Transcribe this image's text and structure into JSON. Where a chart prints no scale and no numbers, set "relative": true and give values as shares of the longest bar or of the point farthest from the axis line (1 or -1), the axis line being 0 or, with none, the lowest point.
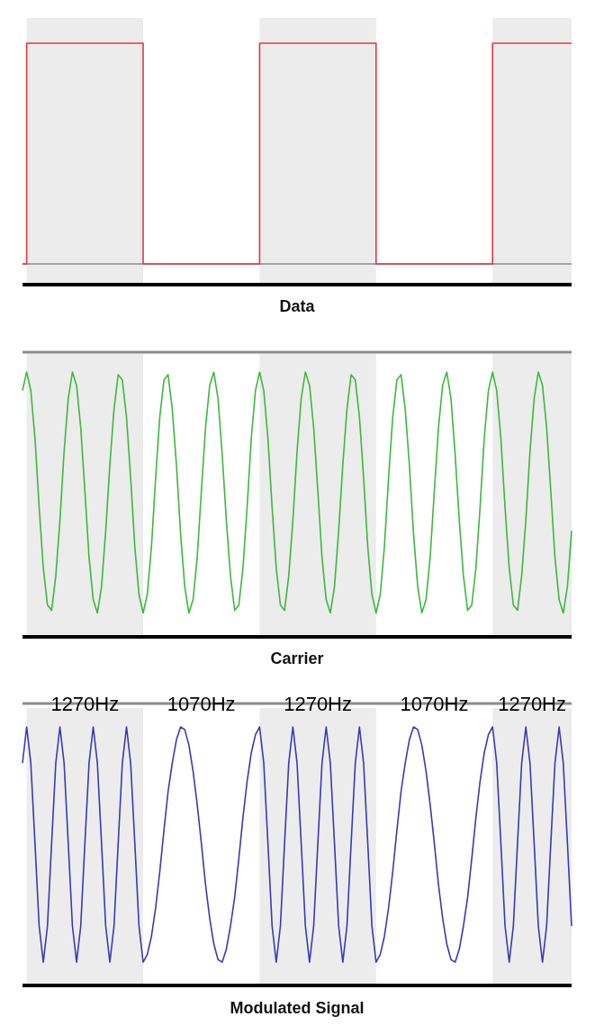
{
  "chart_data": [
    {
      "type": "step",
      "relative": true,
      "xlabel": "Data",
      "color": "#e03a44",
      "categories": [
        null,
        null,
        null,
        null,
        null,
        null,
        null,
        null,
        null,
        null,
        null,
        null,
        null,
        null,
        null,
        null,
        null,
        null,
        null,
        null,
        null,
        null,
        null,
        null,
        null,
        null,
        null,
        null,
        null,
        null,
        null,
        null,
        null,
        null,
        null,
        null,
        null,
        null,
        null,
        null,
        null,
        null,
        null,
        null,
        null,
        null,
        null,
        null,
        null,
        null,
        null,
        null,
        null,
        null,
        null,
        null,
        null,
        null,
        null,
        null,
        null,
        null,
        null,
        null,
        null,
        null,
        null,
        null,
        null,
        null,
        null,
        null,
        null,
        null,
        null,
        null,
        null,
        null,
        null,
        null,
        null,
        null,
        null,
        null,
        null,
        null,
        null,
        null,
        null,
        null,
        null,
        null,
        null,
        null,
        null,
        null,
        null,
        null,
        null,
        null,
        null,
        null,
        null,
        null,
        null,
        null,
        null,
        null,
        null,
        null,
        null,
        null,
        null,
        null,
        null,
        null,
        null,
        null,
        null,
        null,
        null,
        null,
        null,
        null,
        null,
        null,
        null,
        null,
        null,
        null,
        null,
        null,
        null
      ],
      "values": [
        0,
        1,
        1,
        1,
        1,
        1,
        1,
        1,
        1,
        1,
        1,
        1,
        1,
        1,
        1,
        1,
        1,
        1,
        1,
        1,
        1,
        1,
        1,
        1,
        1,
        1,
        1,
        1,
        1,
        0,
        0,
        0,
        0,
        0,
        0,
        0,
        0,
        0,
        0,
        0,
        0,
        0,
        0,
        0,
        0,
        0,
        0,
        0,
        0,
        0,
        0,
        0,
        0,
        0,
        0,
        0,
        0,
        1,
        1,
        1,
        1,
        1,
        1,
        1,
        1,
        1,
        1,
        1,
        1,
        1,
        1,
        1,
        1,
        1,
        1,
        1,
        1,
        1,
        1,
        1,
        1,
        1,
        1,
        1,
        1,
        0,
        0,
        0,
        0,
        0,
        0,
        0,
        0,
        0,
        0,
        0,
        0,
        0,
        0,
        0,
        0,
        0,
        0,
        0,
        0,
        0,
        0,
        0,
        0,
        0,
        0,
        0,
        0,
        1,
        1,
        1,
        1,
        1,
        1,
        1,
        1,
        1,
        1,
        1,
        1,
        1,
        1,
        1,
        1,
        1,
        1,
        1,
        1
      ]
    },
    {
      "type": "line",
      "relative": true,
      "xlabel": "Carrier",
      "color": "#3cb93c",
      "categories": [
        null,
        null,
        null,
        null,
        null,
        null,
        null,
        null,
        null,
        null,
        null,
        null,
        null,
        null,
        null,
        null,
        null,
        null,
        null,
        null,
        null,
        null,
        null,
        null,
        null,
        null,
        null,
        null,
        null,
        null,
        null,
        null,
        null,
        null,
        null,
        null,
        null,
        null,
        null,
        null,
        null,
        null,
        null,
        null,
        null,
        null,
        null,
        null,
        null,
        null,
        null,
        null,
        null,
        null,
        null,
        null,
        null,
        null,
        null,
        null,
        null,
        null,
        null,
        null,
        null,
        null,
        null,
        null,
        null,
        null,
        null,
        null,
        null,
        null,
        null,
        null,
        null,
        null,
        null,
        null,
        null,
        null,
        null,
        null,
        null,
        null,
        null,
        null,
        null,
        null,
        null,
        null,
        null,
        null,
        null,
        null,
        null,
        null,
        null,
        null,
        null,
        null,
        null,
        null,
        null,
        null,
        null,
        null,
        null,
        null,
        null,
        null,
        null,
        null,
        null,
        null,
        null,
        null,
        null,
        null,
        null,
        null,
        null,
        null,
        null,
        null,
        null,
        null,
        null,
        null,
        null,
        null,
        null
      ],
      "values": [
        0.93,
        1,
        0.93,
        0.75,
        0.49,
        0.26,
        0.12,
        0.1,
        0.23,
        0.44,
        0.7,
        0.9,
        1,
        0.95,
        0.79,
        0.55,
        0.3,
        0.14,
        0.09,
        0.19,
        0.4,
        0.65,
        0.86,
        0.99,
        0.97,
        0.83,
        0.6,
        0.34,
        0.16,
        0.09,
        0.16,
        0.34,
        0.6,
        0.83,
        0.97,
        0.99,
        0.86,
        0.65,
        0.39,
        0.19,
        0.09,
        0.14,
        0.3,
        0.55,
        0.79,
        0.95,
        1,
        0.9,
        0.69,
        0.44,
        0.23,
        0.1,
        0.12,
        0.26,
        0.49,
        0.75,
        0.93,
        1,
        0.93,
        0.75,
        0.49,
        0.26,
        0.12,
        0.1,
        0.23,
        0.44,
        0.7,
        0.9,
        1,
        0.95,
        0.79,
        0.55,
        0.3,
        0.14,
        0.09,
        0.19,
        0.4,
        0.65,
        0.86,
        0.99,
        0.97,
        0.83,
        0.6,
        0.34,
        0.16,
        0.09,
        0.16,
        0.34,
        0.6,
        0.83,
        0.97,
        0.99,
        0.86,
        0.65,
        0.39,
        0.19,
        0.09,
        0.14,
        0.3,
        0.55,
        0.79,
        0.95,
        1,
        0.9,
        0.69,
        0.44,
        0.23,
        0.1,
        0.12,
        0.26,
        0.49,
        0.75,
        0.93,
        1,
        0.93,
        0.75,
        0.49,
        0.26,
        0.12,
        0.1,
        0.23,
        0.44,
        0.7,
        0.9,
        1,
        0.95,
        0.79,
        0.55,
        0.3,
        0.14,
        0.09,
        0.19,
        0.4
      ]
    },
    {
      "type": "line",
      "relative": true,
      "xlabel": "Modulated Signal",
      "color": "#3a3ab4",
      "categories": [
        null,
        null,
        null,
        null,
        null,
        null,
        null,
        null,
        null,
        null,
        null,
        null,
        null,
        null,
        null,
        null,
        null,
        null,
        null,
        null,
        null,
        null,
        null,
        null,
        null,
        null,
        null,
        null,
        null,
        null,
        null,
        null,
        null,
        null,
        null,
        null,
        null,
        null,
        null,
        null,
        null,
        null,
        null,
        null,
        null,
        null,
        null,
        null,
        null,
        null,
        null,
        null,
        null,
        null,
        null,
        null,
        null,
        null,
        null,
        null,
        null,
        null,
        null,
        null,
        null,
        null,
        null,
        null,
        null,
        null,
        null,
        null,
        null,
        null,
        null,
        null,
        null,
        null,
        null,
        null,
        null,
        null,
        null,
        null,
        null,
        null,
        null,
        null,
        null,
        null,
        null,
        null,
        null,
        null,
        null,
        null,
        null,
        null,
        null,
        null,
        null,
        null,
        null,
        null,
        null,
        null,
        null,
        null,
        null,
        null,
        null,
        null,
        null,
        null,
        null,
        null,
        null,
        null,
        null,
        null,
        null,
        null,
        null,
        null,
        null,
        null,
        null,
        null,
        null,
        null,
        null,
        null,
        null
      ],
      "values": [
        0.86,
        1,
        0.86,
        0.55,
        0.23,
        0.09,
        0.23,
        0.55,
        0.86,
        1,
        0.86,
        0.55,
        0.23,
        0.09,
        0.23,
        0.55,
        0.86,
        1,
        0.86,
        0.55,
        0.23,
        0.09,
        0.23,
        0.55,
        0.86,
        1,
        0.86,
        0.55,
        0.23,
        0.09,
        0.12,
        0.19,
        0.3,
        0.44,
        0.6,
        0.75,
        0.86,
        0.95,
        1,
        0.99,
        0.93,
        0.83,
        0.7,
        0.55,
        0.39,
        0.26,
        0.16,
        0.1,
        0.09,
        0.14,
        0.23,
        0.34,
        0.49,
        0.65,
        0.79,
        0.9,
        0.97,
        1,
        0.86,
        0.55,
        0.23,
        0.09,
        0.23,
        0.55,
        0.86,
        1,
        0.86,
        0.55,
        0.23,
        0.09,
        0.23,
        0.55,
        0.86,
        1,
        0.86,
        0.55,
        0.23,
        0.09,
        0.23,
        0.55,
        0.86,
        1,
        0.86,
        0.55,
        0.23,
        0.09,
        0.12,
        0.19,
        0.3,
        0.44,
        0.6,
        0.75,
        0.86,
        0.95,
        1,
        0.99,
        0.93,
        0.83,
        0.7,
        0.55,
        0.39,
        0.26,
        0.16,
        0.1,
        0.09,
        0.14,
        0.23,
        0.34,
        0.49,
        0.65,
        0.79,
        0.9,
        0.97,
        1,
        0.86,
        0.55,
        0.23,
        0.09,
        0.23,
        0.55,
        0.86,
        1,
        0.86,
        0.55,
        0.23,
        0.09,
        0.23,
        0.55,
        0.86,
        1,
        0.86,
        0.55,
        0.23
      ],
      "annotations": [
        "1270Hz",
        "1070Hz",
        "1270Hz",
        "1070Hz",
        "1270Hz"
      ]
    }
  ]
}
